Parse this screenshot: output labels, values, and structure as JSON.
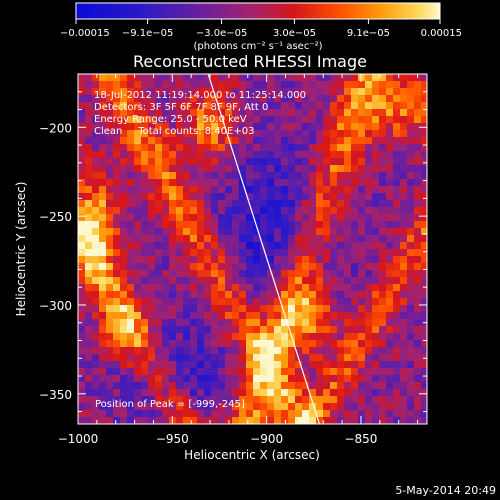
{
  "chart_data": {
    "type": "heatmap",
    "title": "Reconstructed RHESSI Image",
    "xlabel": "Heliocentric X (arcsec)",
    "ylabel": "Heliocentric Y (arcsec)",
    "xlim": [
      -1000,
      -815
    ],
    "ylim": [
      -367,
      -170
    ],
    "x_ticks": [
      {
        "value": -1000,
        "label": "−1000"
      },
      {
        "value": -950,
        "label": "−950"
      },
      {
        "value": -900,
        "label": "−900"
      },
      {
        "value": -850,
        "label": "−850"
      }
    ],
    "y_ticks": [
      {
        "value": -200,
        "label": "−200"
      },
      {
        "value": -250,
        "label": "−250"
      },
      {
        "value": -300,
        "label": "−300"
      },
      {
        "value": -350,
        "label": "−350"
      }
    ],
    "colorbar": {
      "min": -0.00015,
      "max": 0.00015,
      "labels": [
        {
          "value": -0.00015,
          "text": "−0.00015"
        },
        {
          "value": -9.1e-05,
          "text": "−9.1e−05"
        },
        {
          "value": -3e-05,
          "text": "−3.0e−05"
        },
        {
          "value": 3e-05,
          "text": "3.0e−05"
        },
        {
          "value": 9.1e-05,
          "text": "9.1e−05"
        },
        {
          "value": 0.00015,
          "text": "0.00015"
        }
      ],
      "units": "(photons cm⁻² s⁻¹ asec⁻²)"
    },
    "info_lines": [
      "18-Jul-2012 11:19:14.000 to 11:25:14.000",
      "Detectors: 3F 5F 6F 7F 8F 9F, Att 0",
      "Energy Range: 25.0 - 50.0 keV",
      "Clean     Total counts: 8.40E+03"
    ],
    "peak_label": "Position of Peak = [-999,-245]",
    "limb_line": [
      {
        "x": -931,
        "y": -170
      },
      {
        "x": -872,
        "y": -367
      }
    ],
    "grid": false,
    "legend": "none"
  },
  "footer_date": "5-May-2014 20:49"
}
